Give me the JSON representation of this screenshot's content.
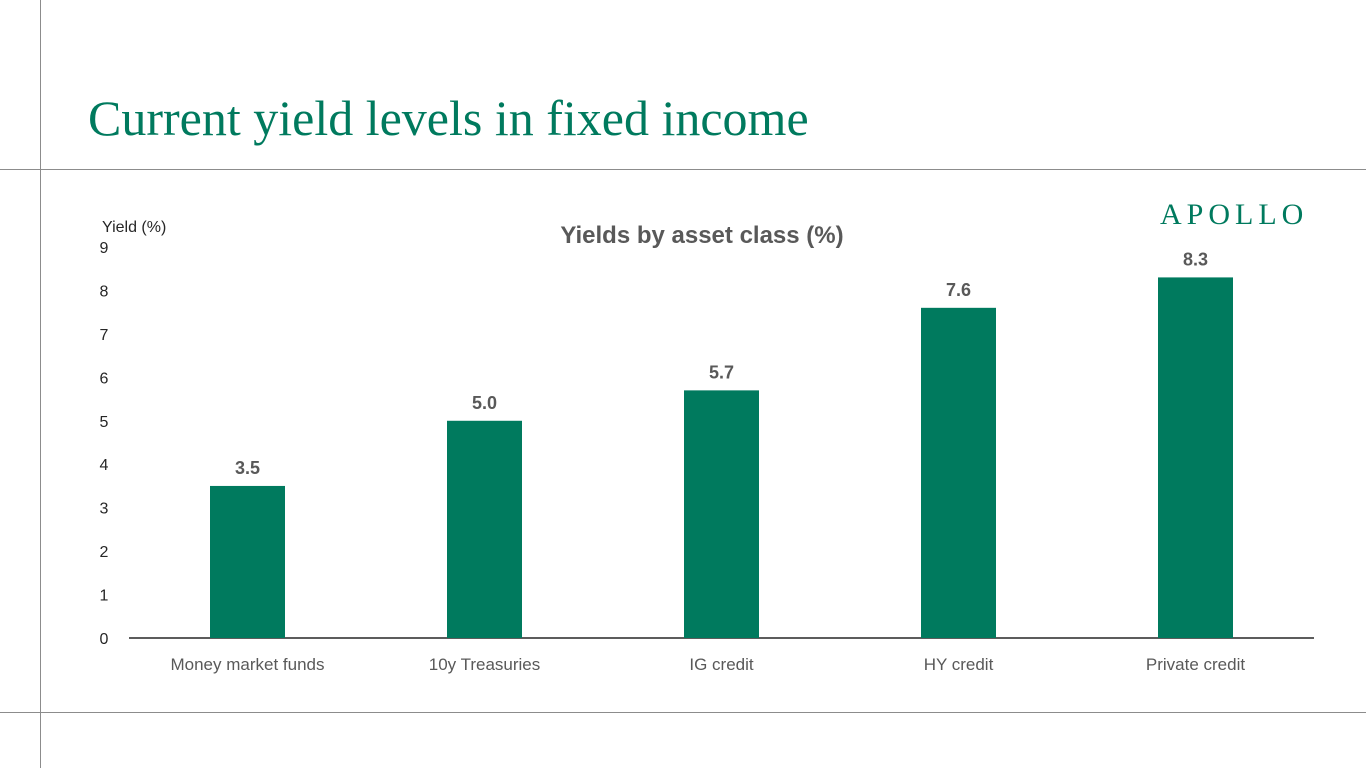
{
  "slide": {
    "title": "Current yield levels in fixed income"
  },
  "brand": {
    "logo_text": "APOLLO"
  },
  "colors": {
    "accent": "#007a5e",
    "bar": "#007a5e",
    "chart_title": "#595959",
    "text": "#262626",
    "rule": "#8c8c8c"
  },
  "chart_data": {
    "type": "bar",
    "title": "Yields by asset class (%)",
    "xlabel": "",
    "ylabel": "Yield (%)",
    "categories": [
      "Money market funds",
      "10y Treasuries",
      "IG credit",
      "HY credit",
      "Private credit"
    ],
    "values": [
      3.5,
      5.0,
      5.7,
      7.6,
      8.3
    ],
    "value_labels": [
      "3.5",
      "5.0",
      "5.7",
      "7.6",
      "8.3"
    ],
    "ylim": [
      0,
      9
    ],
    "yticks": [
      0,
      1,
      2,
      3,
      4,
      5,
      6,
      7,
      8,
      9
    ],
    "grid": false,
    "legend": "none"
  }
}
